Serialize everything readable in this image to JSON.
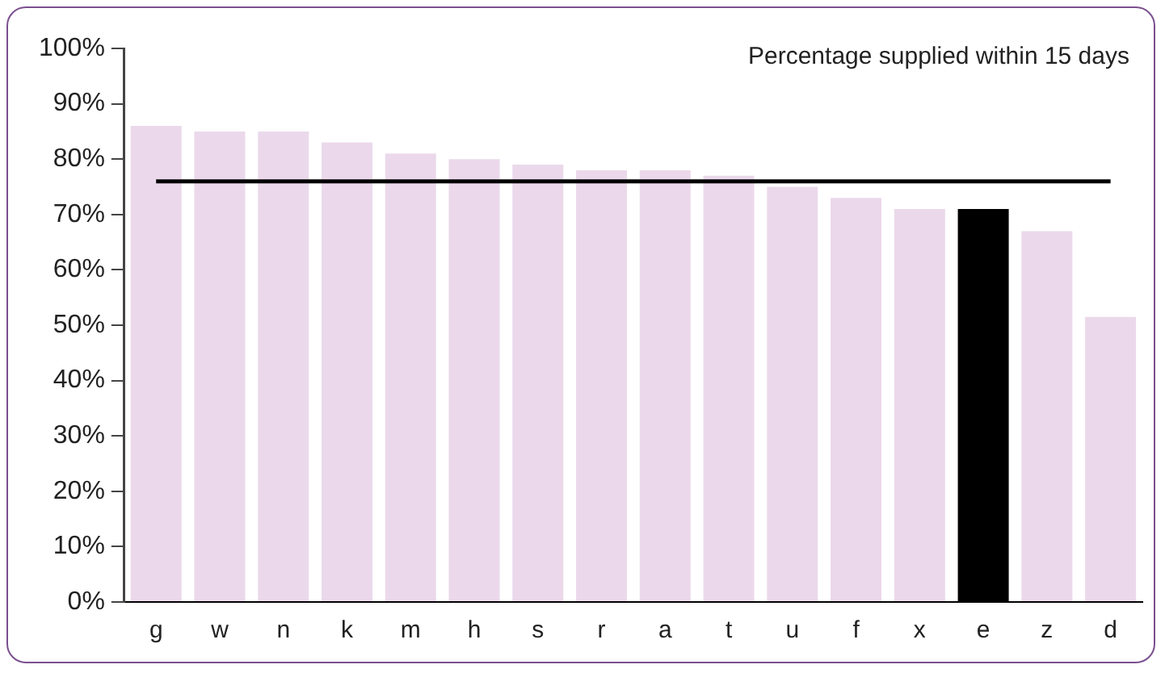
{
  "chart_data": {
    "type": "bar",
    "title": "Percentage supplied within 15 days",
    "categories": [
      "g",
      "w",
      "n",
      "k",
      "m",
      "h",
      "s",
      "r",
      "a",
      "t",
      "u",
      "f",
      "x",
      "e",
      "z",
      "d"
    ],
    "values": [
      86,
      85,
      85,
      83,
      81,
      80,
      79,
      78,
      78,
      77,
      75,
      73,
      71,
      71,
      67,
      51.5
    ],
    "colors": [
      "#ebd9eb",
      "#ebd9eb",
      "#ebd9eb",
      "#ebd9eb",
      "#ebd9eb",
      "#ebd9eb",
      "#ebd9eb",
      "#ebd9eb",
      "#ebd9eb",
      "#ebd9eb",
      "#ebd9eb",
      "#ebd9eb",
      "#ebd9eb",
      "#000000",
      "#ebd9eb",
      "#ebd9eb"
    ],
    "ylim": [
      0,
      100
    ],
    "yticks": [
      {
        "value": 0,
        "label": "0%"
      },
      {
        "value": 10,
        "label": "10%"
      },
      {
        "value": 20,
        "label": "20%"
      },
      {
        "value": 30,
        "label": "30%"
      },
      {
        "value": 40,
        "label": "40%"
      },
      {
        "value": 50,
        "label": "50%"
      },
      {
        "value": 60,
        "label": "60%"
      },
      {
        "value": 70,
        "label": "70%"
      },
      {
        "value": 80,
        "label": "80%"
      },
      {
        "value": 90,
        "label": "90%"
      },
      {
        "value": 100,
        "label": "100%"
      }
    ],
    "ref_lines": [
      {
        "axis": "y",
        "value": 76,
        "color": "#000000"
      }
    ],
    "grid": false,
    "legend": false
  }
}
